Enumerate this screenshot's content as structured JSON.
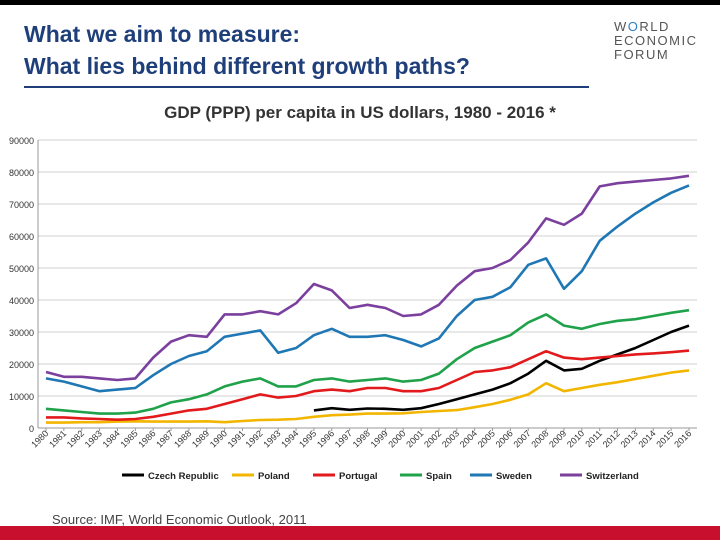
{
  "slide": {
    "title_line1": "What we aim to measure:",
    "title_line2": "What lies behind different growth paths?",
    "logo_line1": "W",
    "logo_line1_o": "O",
    "logo_line1_rest": "RLD",
    "logo_line2": "ECONOMIC",
    "logo_line3": "FORUM",
    "source": "Source: IMF, World Economic Outlook, 2011",
    "colors": {
      "title": "#1f3f7a",
      "accent": "#c8102e"
    }
  },
  "chart_data": {
    "type": "line",
    "title": "GDP (PPP) per capita in US dollars, 1980 - 2016 *",
    "xlabel": "",
    "ylabel": "",
    "ylim": [
      0,
      90000
    ],
    "yticks": [
      0,
      10000,
      20000,
      30000,
      40000,
      50000,
      60000,
      70000,
      80000,
      90000
    ],
    "grid": true,
    "legend": "bottom",
    "x": [
      "1980",
      "1981",
      "1982",
      "1983",
      "1984",
      "1985",
      "1986",
      "1987",
      "1988",
      "1989",
      "1990",
      "1991",
      "1992",
      "1993",
      "1994",
      "1995",
      "1996",
      "1997",
      "1998",
      "1999",
      "2000",
      "2001",
      "2002",
      "2003",
      "2004",
      "2005",
      "2006",
      "2007",
      "2008",
      "2009",
      "2010",
      "2011",
      "2012",
      "2013",
      "2014",
      "2015",
      "2016"
    ],
    "series": [
      {
        "name": "Czech Republic",
        "color": "#000000",
        "values": [
          null,
          null,
          null,
          null,
          null,
          null,
          null,
          null,
          null,
          null,
          null,
          null,
          null,
          null,
          null,
          5500,
          6200,
          5700,
          6100,
          6000,
          5700,
          6200,
          7500,
          9000,
          10500,
          12000,
          14000,
          17000,
          21000,
          18000,
          18500,
          21000,
          23000,
          25000,
          27500,
          30000,
          32000
        ]
      },
      {
        "name": "Poland",
        "color": "#f2b600",
        "values": [
          1700,
          1700,
          1800,
          1800,
          2000,
          2100,
          2000,
          2000,
          2000,
          2100,
          1800,
          2200,
          2500,
          2600,
          2800,
          3500,
          4000,
          4200,
          4500,
          4500,
          4600,
          5000,
          5300,
          5600,
          6500,
          7500,
          8800,
          10500,
          14000,
          11500,
          12500,
          13500,
          14300,
          15300,
          16300,
          17300,
          18000
        ]
      },
      {
        "name": "Portugal",
        "color": "#e31a1c",
        "values": [
          3300,
          3300,
          3000,
          2800,
          2600,
          2800,
          3500,
          4500,
          5500,
          6000,
          7500,
          9000,
          10500,
          9500,
          10000,
          11500,
          12000,
          11500,
          12500,
          12500,
          11500,
          11500,
          12500,
          15000,
          17500,
          18000,
          19000,
          21500,
          24000,
          22000,
          21500,
          22000,
          22500,
          23000,
          23300,
          23700,
          24200
        ]
      },
      {
        "name": "Spain",
        "color": "#1fa24a",
        "values": [
          6000,
          5500,
          5000,
          4500,
          4500,
          4800,
          6000,
          8000,
          9000,
          10500,
          13000,
          14500,
          15500,
          13000,
          13000,
          15000,
          15500,
          14500,
          15000,
          15500,
          14500,
          15000,
          17000,
          21500,
          25000,
          27000,
          29000,
          33000,
          35500,
          32000,
          31000,
          32500,
          33500,
          34000,
          35000,
          36000,
          36800
        ]
      },
      {
        "name": "Sweden",
        "color": "#1f77b4",
        "values": [
          15500,
          14500,
          13000,
          11500,
          12000,
          12500,
          16500,
          20000,
          22500,
          24000,
          28500,
          29500,
          30500,
          23500,
          25000,
          29000,
          31000,
          28500,
          28500,
          29000,
          27500,
          25500,
          28000,
          35000,
          40000,
          41000,
          44000,
          51000,
          53000,
          43500,
          49000,
          58500,
          63000,
          67000,
          70500,
          73500,
          75800
        ]
      },
      {
        "name": "Switzerland",
        "color": "#7b3f9e",
        "values": [
          17500,
          16000,
          16000,
          15500,
          15000,
          15500,
          22000,
          27000,
          29000,
          28500,
          35500,
          35500,
          36500,
          35500,
          39000,
          45000,
          43000,
          37500,
          38500,
          37500,
          35000,
          35500,
          38500,
          44500,
          49000,
          50000,
          52500,
          58000,
          65500,
          63500,
          67000,
          75500,
          76500,
          77000,
          77500,
          78000,
          78800
        ]
      }
    ]
  }
}
